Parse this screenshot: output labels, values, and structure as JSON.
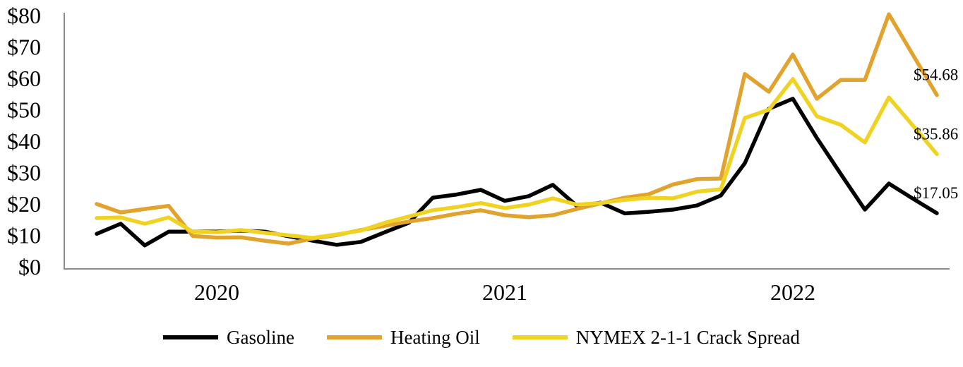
{
  "chart_data": {
    "type": "line",
    "title": "",
    "grid": "off",
    "legend_position": "bottom",
    "x_axis": {
      "year_labels": [
        "2020",
        "2021",
        "2022"
      ],
      "months": [
        "Jan-20",
        "Feb-20",
        "Mar-20",
        "Apr-20",
        "May-20",
        "Jun-20",
        "Jul-20",
        "Aug-20",
        "Sep-20",
        "Oct-20",
        "Nov-20",
        "Dec-20",
        "Jan-21",
        "Feb-21",
        "Mar-21",
        "Apr-21",
        "May-21",
        "Jun-21",
        "Jul-21",
        "Aug-21",
        "Sep-21",
        "Oct-21",
        "Nov-21",
        "Dec-21",
        "Jan-22",
        "Feb-22",
        "Mar-22",
        "Apr-22",
        "May-22",
        "Jun-22",
        "Jul-22",
        "Aug-22",
        "Sep-22",
        "Oct-22",
        "Nov-22",
        "Dec-22"
      ]
    },
    "y_axis": {
      "min": 0,
      "max": 80,
      "tick_step": 10,
      "tick_values": [
        0,
        10,
        20,
        30,
        40,
        50,
        60,
        70,
        80
      ],
      "tick_labels": [
        "$0",
        "$10",
        "$20",
        "$30",
        "$40",
        "$50",
        "$60",
        "$70",
        "$80"
      ]
    },
    "series": [
      {
        "name": "Gasoline",
        "color": "#000000",
        "end_label": "$17.05",
        "values": [
          10.5,
          13.7,
          6.8,
          11.2,
          11.2,
          11.2,
          11.5,
          11.2,
          9.7,
          8.3,
          7.0,
          7.9,
          11.0,
          14.0,
          22.0,
          23.0,
          24.5,
          21.0,
          22.5,
          26.1,
          19.4,
          20.4,
          17.0,
          17.5,
          18.2,
          19.5,
          22.7,
          33.0,
          50.3,
          53.5,
          41.0,
          29.5,
          18.2,
          26.5,
          21.7,
          17.05
        ]
      },
      {
        "name": "Heating Oil",
        "color": "#E1A32E",
        "end_label": "$54.68",
        "values": [
          20.0,
          17.3,
          18.4,
          19.4,
          9.8,
          9.3,
          9.4,
          8.3,
          7.4,
          9.0,
          10.1,
          11.7,
          13.0,
          14.4,
          15.5,
          16.9,
          18.0,
          16.4,
          15.8,
          16.4,
          18.4,
          20.2,
          22.0,
          23.1,
          26.2,
          27.9,
          28.1,
          61.4,
          55.7,
          67.6,
          53.5,
          59.5,
          59.5,
          80.4,
          67.5,
          54.68
        ]
      },
      {
        "name": "NYMEX 2-1-1 Crack Spread",
        "color": "#F0D322",
        "end_label": "$35.86",
        "values": [
          15.5,
          15.7,
          13.7,
          15.7,
          11.2,
          11.0,
          11.7,
          10.8,
          10.0,
          9.2,
          10.3,
          11.5,
          14.0,
          16.0,
          18.0,
          19.0,
          20.3,
          18.7,
          19.8,
          21.8,
          19.8,
          20.3,
          21.3,
          22.0,
          21.8,
          23.9,
          24.7,
          47.4,
          50.0,
          59.8,
          47.9,
          45.2,
          39.6,
          53.9,
          45.0,
          35.86
        ]
      }
    ],
    "axis_color": "#8C8C8C",
    "text_color": "#000000"
  }
}
